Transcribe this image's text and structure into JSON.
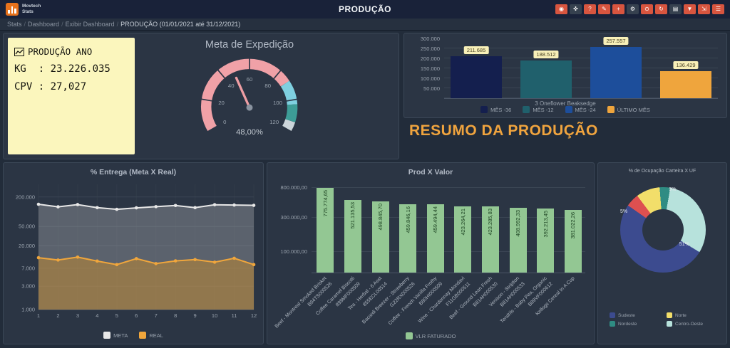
{
  "app": {
    "logo_line1": "Movtech",
    "logo_line2": "Stats",
    "title": "PRODUÇÃO"
  },
  "toolbar": {
    "buttons": [
      {
        "name": "camera",
        "glyph": "◉",
        "color": "#d8553f"
      },
      {
        "name": "pin",
        "glyph": "✜",
        "color": "#36414f"
      },
      {
        "name": "help",
        "glyph": "?",
        "color": "#d8553f"
      },
      {
        "name": "edit",
        "glyph": "✎",
        "color": "#d8553f"
      },
      {
        "name": "add",
        "glyph": "+",
        "color": "#d8553f"
      },
      {
        "name": "settings",
        "glyph": "⚙",
        "color": "#36414f"
      },
      {
        "name": "power",
        "glyph": "⊙",
        "color": "#d8553f"
      },
      {
        "name": "refresh",
        "glyph": "↻",
        "color": "#d8553f"
      },
      {
        "name": "apps",
        "glyph": "▤",
        "color": "#36414f"
      },
      {
        "name": "filter",
        "glyph": "▼",
        "color": "#d8553f"
      },
      {
        "name": "expand",
        "glyph": "⇲",
        "color": "#d8553f"
      },
      {
        "name": "menu",
        "glyph": "☰",
        "color": "#d8553f"
      }
    ]
  },
  "breadcrumb": {
    "items": [
      "Stats",
      "Dashboard",
      "Exibir Dashboard"
    ],
    "current": "PRODUÇÃO (01/01/2021 até 31/12/2021)"
  },
  "note": {
    "title": "PRODUÇÃO ANO",
    "line1": "KG  : 23.226.035",
    "line2": "CPV : 27,027"
  },
  "resumo_text": "RESUMO DA PRODUÇÃO",
  "colors": {
    "accent_orange": "#f0a43e",
    "panel": "#2b3544",
    "background": "#222c3a",
    "note_yellow": "#fbf6bd"
  },
  "chart_data": [
    {
      "id": "meta_expedicao",
      "type": "gauge",
      "title": "Meta de Expedição",
      "value": 48,
      "value_display": "48,00%",
      "min": 0,
      "max": 120,
      "ticks": [
        0,
        20,
        40,
        60,
        80,
        100,
        120
      ],
      "bands": [
        {
          "from": 0,
          "to": 88,
          "color": "#f0a1a7"
        },
        {
          "from": 88,
          "to": 103,
          "color": "#7fd0e0"
        },
        {
          "from": 103,
          "to": 114,
          "color": "#3d9d97"
        },
        {
          "from": 114,
          "to": 120,
          "color": "#ccd5da"
        }
      ],
      "needle_color": "#ef9ea4"
    },
    {
      "id": "resumo_mensal",
      "type": "bar",
      "categories": [
        "3 Oneflower Beaksedge"
      ],
      "series": [
        {
          "name": "MÊS -36",
          "value": 211685,
          "display": "211.685",
          "color": "#141f4e"
        },
        {
          "name": "MÊS -12",
          "value": 188512,
          "display": "188.512",
          "color": "#20606c"
        },
        {
          "name": "MÊS -24",
          "value": 257557,
          "display": "257.557",
          "color": "#1d4e9b"
        },
        {
          "name": "ÚLTIMO MÊS",
          "value": 136429,
          "display": "136.429",
          "color": "#efa53d"
        }
      ],
      "ylim": [
        0,
        300000
      ],
      "yticks": [
        "300.000",
        "250.000",
        "200.000",
        "150.000",
        "100.000",
        "50.000"
      ],
      "legend_position": "bottom",
      "grid": true
    },
    {
      "id": "entrega_meta_real",
      "type": "line",
      "title": "% Entrega (Meta X Real)",
      "x": [
        1,
        2,
        3,
        4,
        5,
        6,
        7,
        8,
        9,
        10,
        11,
        12
      ],
      "yscale": "log",
      "yticks": [
        {
          "v": 200000,
          "label": "200.000"
        },
        {
          "v": 50000,
          "label": "50.000"
        },
        {
          "v": 20000,
          "label": "20.000"
        },
        {
          "v": 7000,
          "label": "7.000"
        },
        {
          "v": 3000,
          "label": "3.000"
        },
        {
          "v": 1000,
          "label": "1.000"
        }
      ],
      "series": [
        {
          "name": "META",
          "color": "#e8e8e8",
          "fill": "rgba(215,215,215,0.28)",
          "values": [
            142000,
            126000,
            140000,
            121000,
            112000,
            120000,
            127000,
            134000,
            121000,
            139000,
            137000,
            135000
          ]
        },
        {
          "name": "REAL",
          "color": "#f0a63c",
          "fill": "rgba(200,140,45,0.50)",
          "values": [
            11500,
            10300,
            11800,
            9800,
            8300,
            11000,
            8700,
            9900,
            10500,
            9300,
            11200,
            8300
          ]
        }
      ],
      "legend_position": "bottom",
      "grid": true
    },
    {
      "id": "prod_x_valor",
      "type": "bar",
      "title": "Prod X Valor",
      "legend": "VLR FATURADO",
      "color": "#93c793",
      "yscale": "log",
      "yticks": [
        {
          "v": 800000,
          "label": "800.000,00"
        },
        {
          "v": 300000,
          "label": "300.000,00"
        },
        {
          "v": 100000,
          "label": "100.000,00"
        }
      ],
      "items": [
        {
          "code": "B94TS000526",
          "name": "Beef - Montreal Smoked Brisket",
          "value": 775774.65,
          "display": "775.774,65"
        },
        {
          "code": "898MF000509",
          "name": "Coffee Caramel Biscotti",
          "value": 521135.53,
          "display": "521.135,53"
        },
        {
          "code": "855ECL00514",
          "name": "Tea - Herbal - 6 Asst",
          "value": 498845.7,
          "display": "498.845,70"
        },
        {
          "code": "G22RX000526",
          "name": "Bacardi Breezer - Strawberry",
          "value": 459846.16,
          "display": "459.846,16"
        },
        {
          "code": "B80HI000509",
          "name": "Coffee - French Vanilla Frothy",
          "value": 459494.44,
          "display": "459.494,44"
        },
        {
          "code": "F11GB000511",
          "name": "Wine - Chardonnay Mondavi",
          "value": 423264.21,
          "display": "423.264,21"
        },
        {
          "code": "B81AH000530",
          "name": "Beef - Ground Lean Fresh",
          "value": 423285.83,
          "display": "423.285,83"
        },
        {
          "code": "B81AH000533",
          "name": "Venison - Striplion",
          "value": 408992.33,
          "display": "408.992,33"
        },
        {
          "code": "B89VF000612",
          "name": "Tendrils - Baby Pea, Organic",
          "value": 392213.45,
          "display": "392.213,45"
        },
        {
          "code": "",
          "name": "Kellogs Cereal In A Cup",
          "value": 381022.26,
          "display": "381.022,26"
        }
      ],
      "legend_position": "bottom",
      "grid": true
    },
    {
      "id": "ocupacao_carteira_uf",
      "type": "pie",
      "title": "% de Ocupação Carteira X UF",
      "start_angle": -55,
      "segments": [
        {
          "label": "",
          "value": 5,
          "color": "#dd5050"
        },
        {
          "label": "Norte",
          "value": 9,
          "color": "#f2de6a"
        },
        {
          "label": "Nordeste",
          "value": 4,
          "color": "#2f8c83"
        },
        {
          "label": "Centro-Oeste",
          "value": 31,
          "color": "#b7e2dc"
        },
        {
          "label": "Sudeste",
          "value": 51,
          "color": "#3c4b8f"
        }
      ],
      "slice_labels": [
        {
          "text": "9%",
          "x": 57,
          "y": 0
        },
        {
          "text": "5%",
          "x": 0,
          "y": 26
        },
        {
          "text": "51%",
          "x": 69,
          "y": 64
        }
      ],
      "legend": [
        {
          "label": "Sudeste",
          "color": "#3c4b8f"
        },
        {
          "label": "Norte",
          "color": "#f2de6a"
        },
        {
          "label": "Nordeste",
          "color": "#2f8c83"
        },
        {
          "label": "Centro-Oeste",
          "color": "#b7e2dc"
        }
      ],
      "legend_position": "bottom"
    }
  ]
}
